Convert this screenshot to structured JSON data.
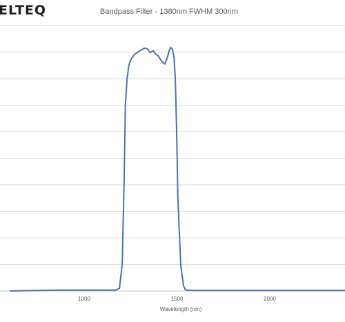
{
  "brand": {
    "logo_text": "ELTEQ"
  },
  "chart_data": {
    "type": "line",
    "title": "Bandpass Filter - 1380nm FWHM 300nm",
    "xlabel": "Wavelength (nm)",
    "ylabel": "",
    "xlim": [
      600,
      2500
    ],
    "ylim": [
      0,
      100
    ],
    "x_ticks": [
      1000,
      1500,
      2000
    ],
    "y_gridlines": [
      10,
      20,
      30,
      40,
      50,
      60,
      70,
      80,
      90,
      100
    ],
    "grid": true,
    "series": [
      {
        "color": "#4a72b0",
        "x": [
          600,
          850,
          1100,
          1170,
          1190,
          1205,
          1215,
          1222,
          1230,
          1240,
          1250,
          1270,
          1300,
          1325,
          1340,
          1355,
          1372,
          1386,
          1400,
          1418,
          1435,
          1448,
          1458,
          1466,
          1476,
          1484,
          1491,
          1498,
          1505,
          1520,
          1535,
          1545,
          1555,
          1580,
          1800,
          2200,
          2500
        ],
        "y": [
          0,
          0.3,
          0.3,
          0.3,
          1,
          10,
          40,
          70,
          79,
          85,
          87,
          89,
          90.5,
          91.5,
          91.2,
          89.8,
          90.5,
          89.2,
          88.5,
          86.5,
          85.5,
          88,
          90.5,
          91.8,
          91,
          88,
          80,
          60,
          35,
          10,
          2,
          0.5,
          0.3,
          0.2,
          0.2,
          0.2,
          0.2
        ]
      }
    ]
  }
}
